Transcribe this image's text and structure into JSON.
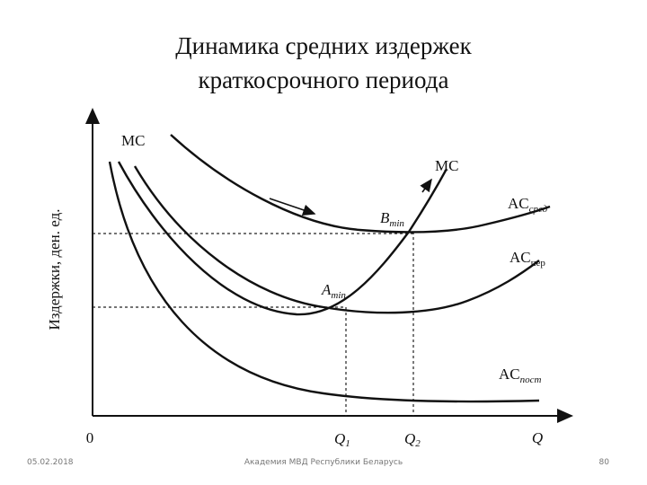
{
  "title": [
    "Динамика средних издержек",
    "краткосрочного периода"
  ],
  "axes": {
    "y_label": "Издержки, ден. ед.",
    "origin": "0",
    "x_label": "Q"
  },
  "x_marks": [
    {
      "main": "Q",
      "sub": "1"
    },
    {
      "main": "Q",
      "sub": "2"
    }
  ],
  "points": [
    {
      "main": "A",
      "sub": "min"
    },
    {
      "main": "B",
      "sub": "min"
    }
  ],
  "curves": [
    {
      "main": "MC",
      "sub": null
    },
    {
      "main": "MC",
      "sub": null
    },
    {
      "main": "AC",
      "sub": "сред"
    },
    {
      "main": "AC",
      "sub": "пер"
    },
    {
      "main": "AC",
      "sub": "пост"
    }
  ],
  "footer": {
    "date": "05.02.2018",
    "org": "Академия МВД Республики Беларусь",
    "page": "80"
  }
}
